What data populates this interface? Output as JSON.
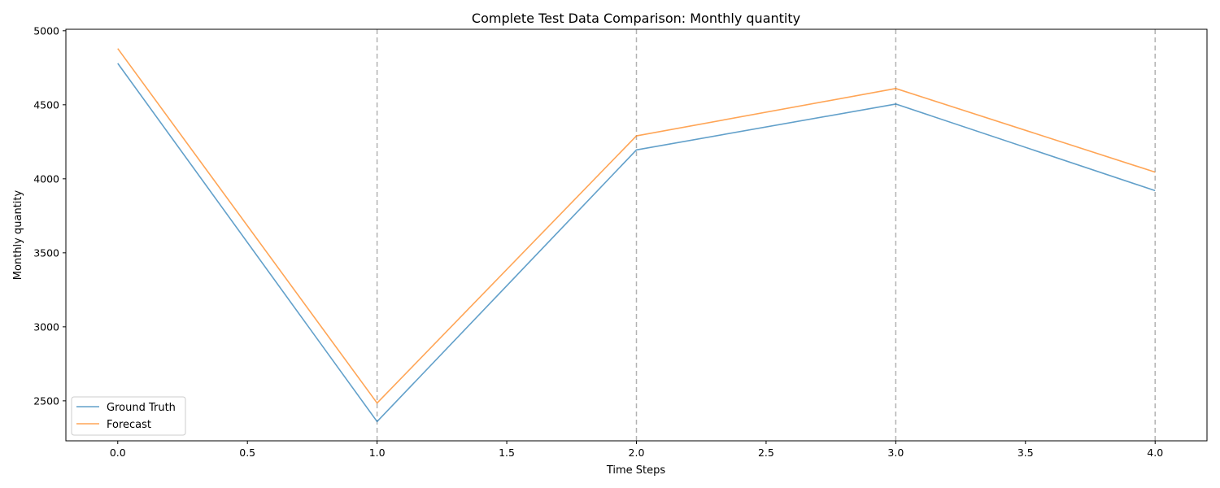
{
  "chart_data": {
    "type": "line",
    "title": "Complete Test Data Comparison: Monthly quantity",
    "xlabel": "Time Steps",
    "ylabel": "Monthly quantity",
    "xlim": [
      -0.2,
      4.2
    ],
    "ylim": [
      2230,
      5010
    ],
    "x": [
      0,
      1,
      2,
      3,
      4
    ],
    "x_ticks": [
      0.0,
      0.5,
      1.0,
      1.5,
      2.0,
      2.5,
      3.0,
      3.5,
      4.0
    ],
    "x_tick_labels": [
      "0.0",
      "0.5",
      "1.0",
      "1.5",
      "2.0",
      "2.5",
      "3.0",
      "3.5",
      "4.0"
    ],
    "y_ticks": [
      2500,
      3000,
      3500,
      4000,
      4500,
      5000
    ],
    "y_tick_labels": [
      "2500",
      "3000",
      "3500",
      "4000",
      "4500",
      "5000"
    ],
    "vlines": [
      1,
      2,
      3,
      4
    ],
    "grid": false,
    "legend_position": "lower-left",
    "series": [
      {
        "name": "Ground Truth",
        "color": "#1f77b4",
        "values": [
          4780,
          2360,
          4195,
          4505,
          3920
        ]
      },
      {
        "name": "Forecast",
        "color": "#ff7f0e",
        "values": [
          4880,
          2485,
          4290,
          4610,
          4045
        ]
      }
    ]
  }
}
